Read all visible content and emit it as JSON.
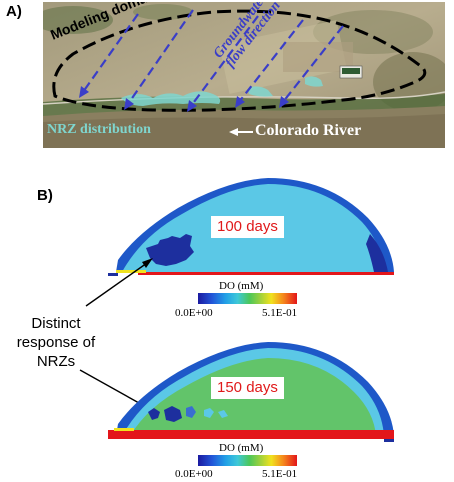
{
  "panel_a": {
    "label": "A)",
    "modeling_domain": "Modeling domain",
    "groundwater_line1": "Groundwater",
    "groundwater_line2": "flow direction",
    "nrz_distribution": "NRZ distribution",
    "river_label": "Colorado River"
  },
  "panel_b": {
    "label": "B)",
    "snapshots": [
      {
        "days_label": "100 days",
        "colorbar_title": "DO (mM)",
        "cbar_min": "0.0E+00",
        "cbar_max": "5.1E-01"
      },
      {
        "days_label": "150 days",
        "colorbar_title": "DO (mM)",
        "cbar_min": "0.0E+00",
        "cbar_max": "5.1E-01"
      }
    ],
    "annotation_line1": "Distinct",
    "annotation_line2": "response of",
    "annotation_line3": "NRZs"
  },
  "colors": {
    "domain_outline": "#000000",
    "flow_arrows": "#3a3ec8",
    "nrz_text": "#7fd6cf",
    "low_do_cyan": "#5bc8e6",
    "mid_do_green": "#62c46a",
    "high_do_red": "#e3161a",
    "nrz_blue": "#1d2f9e",
    "days_text": "#e0191a"
  }
}
